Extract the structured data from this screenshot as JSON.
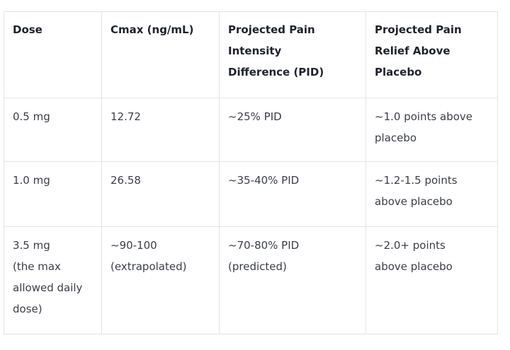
{
  "table": {
    "columns": [
      "Dose",
      "Cmax (ng/mL)",
      "Projected Pain\nIntensity\nDifference (PID)",
      "Projected Pain\nRelief Above\nPlacebo"
    ],
    "rows": [
      [
        "0.5 mg",
        "12.72",
        "~25% PID",
        "~1.0 points above\nplacebo"
      ],
      [
        "1.0 mg",
        "26.58",
        "~35-40% PID",
        "~1.2-1.5 points\nabove placebo"
      ],
      [
        "3.5 mg\n(the max\nallowed daily\ndose)",
        "~90-100\n(extrapolated)",
        "~70-80% PID\n(predicted)",
        "~2.0+ points\nabove placebo"
      ]
    ]
  },
  "colors": {
    "border": "#e4e4e4",
    "header_text": "#1e222b",
    "body_text": "#3a3e47",
    "background": "#ffffff"
  }
}
